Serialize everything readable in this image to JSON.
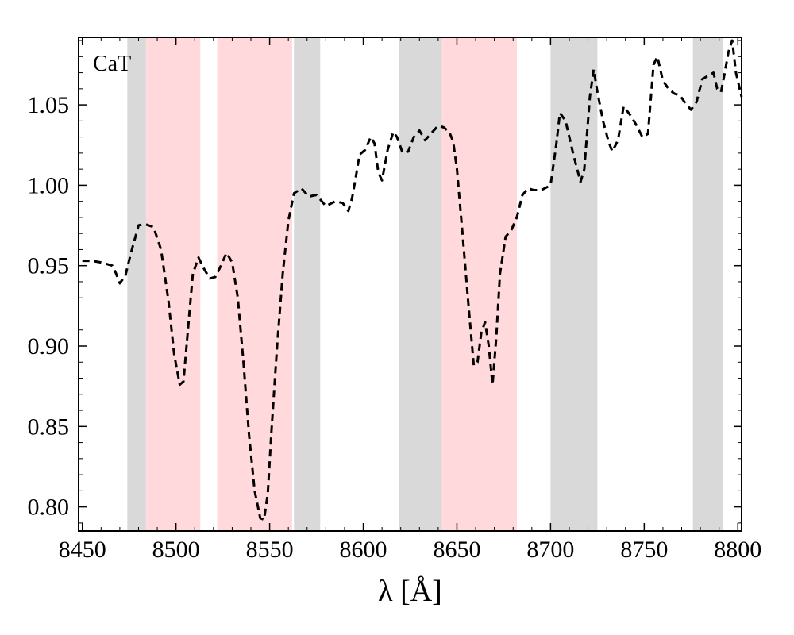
{
  "chart_data": {
    "type": "line",
    "panel_label": "CaT",
    "xlabel": "λ [Å]",
    "ylabel": "",
    "xlim": [
      8448,
      8802
    ],
    "ylim": [
      0.785,
      1.092
    ],
    "x_ticks": [
      8450,
      8500,
      8550,
      8600,
      8650,
      8700,
      8750,
      8800
    ],
    "y_ticks": [
      0.8,
      0.85,
      0.9,
      0.95,
      1.0,
      1.05
    ],
    "y_tick_labels": [
      "0.80",
      "0.85",
      "0.90",
      "0.95",
      "1.00",
      "1.05"
    ],
    "grid": false,
    "bands": [
      {
        "kind": "continuum",
        "color": "#d9d9d9",
        "range": [
          8474,
          8484
        ]
      },
      {
        "kind": "feature",
        "color": "#ffd9dc",
        "range": [
          8484,
          8513
        ]
      },
      {
        "kind": "feature",
        "color": "#ffd9dc",
        "range": [
          8522,
          8562
        ]
      },
      {
        "kind": "continuum",
        "color": "#d9d9d9",
        "range": [
          8563,
          8577
        ]
      },
      {
        "kind": "continuum",
        "color": "#d9d9d9",
        "range": [
          8619,
          8642
        ]
      },
      {
        "kind": "feature",
        "color": "#ffd9dc",
        "range": [
          8642,
          8682
        ]
      },
      {
        "kind": "continuum",
        "color": "#d9d9d9",
        "range": [
          8700,
          8725
        ]
      },
      {
        "kind": "continuum",
        "color": "#d9d9d9",
        "range": [
          8776,
          8792
        ]
      }
    ],
    "series": [
      {
        "style": "dashed",
        "color": "#000000",
        "x": [
          8450,
          8455,
          8460,
          8466,
          8468,
          8470,
          8473,
          8476,
          8480,
          8483,
          8488,
          8492,
          8496,
          8499,
          8502,
          8504,
          8506,
          8509,
          8512,
          8515,
          8518,
          8521,
          8524,
          8527,
          8530,
          8533,
          8536,
          8539,
          8542,
          8545,
          8547,
          8549,
          8551,
          8554,
          8557,
          8560,
          8563,
          8567,
          8571,
          8575,
          8580,
          8585,
          8589,
          8592,
          8594,
          8596,
          8598,
          8601,
          8604,
          8606,
          8608,
          8610,
          8613,
          8616,
          8618,
          8621,
          8624,
          8627,
          8630,
          8633,
          8636,
          8640,
          8643,
          8646,
          8648,
          8650,
          8653,
          8656,
          8659,
          8661,
          8663,
          8665,
          8667,
          8669,
          8671,
          8673,
          8676,
          8679,
          8682,
          8685,
          8688,
          8691,
          8695,
          8700,
          8703,
          8705,
          8708,
          8712,
          8716,
          8718,
          8721,
          8723,
          8725,
          8728,
          8731,
          8733,
          8736,
          8739,
          8743,
          8746,
          8749,
          8752,
          8755,
          8757,
          8760,
          8763,
          8766,
          8769,
          8772,
          8775,
          8778,
          8781,
          8784,
          8787,
          8789,
          8791,
          8793,
          8795,
          8797,
          8799,
          8802
        ],
        "y": [
          0.953,
          0.953,
          0.952,
          0.95,
          0.945,
          0.939,
          0.944,
          0.958,
          0.975,
          0.976,
          0.974,
          0.96,
          0.928,
          0.895,
          0.876,
          0.878,
          0.905,
          0.945,
          0.955,
          0.948,
          0.942,
          0.943,
          0.95,
          0.958,
          0.952,
          0.93,
          0.89,
          0.845,
          0.81,
          0.793,
          0.792,
          0.808,
          0.848,
          0.9,
          0.945,
          0.978,
          0.995,
          0.998,
          0.993,
          0.994,
          0.987,
          0.99,
          0.989,
          0.984,
          0.992,
          1.005,
          1.019,
          1.022,
          1.03,
          1.026,
          1.008,
          1.003,
          1.022,
          1.033,
          1.03,
          1.02,
          1.021,
          1.03,
          1.034,
          1.028,
          1.032,
          1.037,
          1.036,
          1.033,
          1.027,
          1.01,
          0.97,
          0.928,
          0.888,
          0.89,
          0.908,
          0.915,
          0.9,
          0.876,
          0.905,
          0.945,
          0.968,
          0.972,
          0.98,
          0.994,
          0.998,
          0.997,
          0.997,
          1.0,
          1.025,
          1.045,
          1.04,
          1.02,
          1.002,
          1.01,
          1.055,
          1.072,
          1.058,
          1.04,
          1.027,
          1.021,
          1.028,
          1.049,
          1.043,
          1.037,
          1.03,
          1.032,
          1.075,
          1.08,
          1.065,
          1.06,
          1.057,
          1.056,
          1.051,
          1.047,
          1.052,
          1.066,
          1.068,
          1.07,
          1.06,
          1.058,
          1.07,
          1.083,
          1.09,
          1.07,
          1.055
        ]
      }
    ]
  }
}
